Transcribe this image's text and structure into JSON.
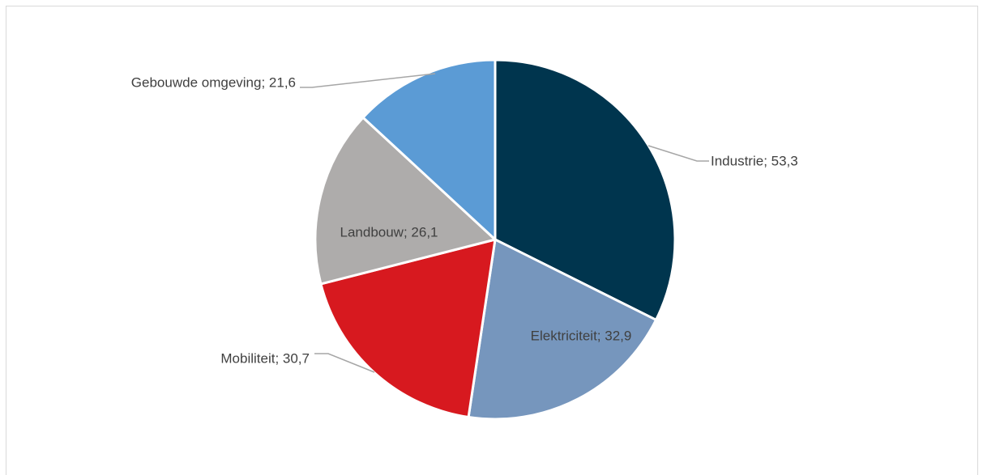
{
  "chart_data": {
    "type": "pie",
    "title": "",
    "slices": [
      {
        "label": "Industrie",
        "value": 53.3,
        "display": "Industrie; 53,3",
        "color": "#00354e"
      },
      {
        "label": "Elektriciteit",
        "value": 32.9,
        "display": "Elektriciteit; 32,9",
        "color": "#7696bd"
      },
      {
        "label": "Mobiliteit",
        "value": 30.7,
        "display": "Mobiliteit; 30,7",
        "color": "#d7191f"
      },
      {
        "label": "Landbouw",
        "value": 26.1,
        "display": "Landbouw; 26,1",
        "color": "#aeacab"
      },
      {
        "label": "Gebouwde omgeving",
        "value": 21.6,
        "display": "Gebouwde omgeving; 21,6",
        "color": "#5b9bd5"
      }
    ],
    "start_angle": "12 o'clock",
    "direction": "clockwise",
    "legend": "none",
    "label_style": "category; value"
  }
}
